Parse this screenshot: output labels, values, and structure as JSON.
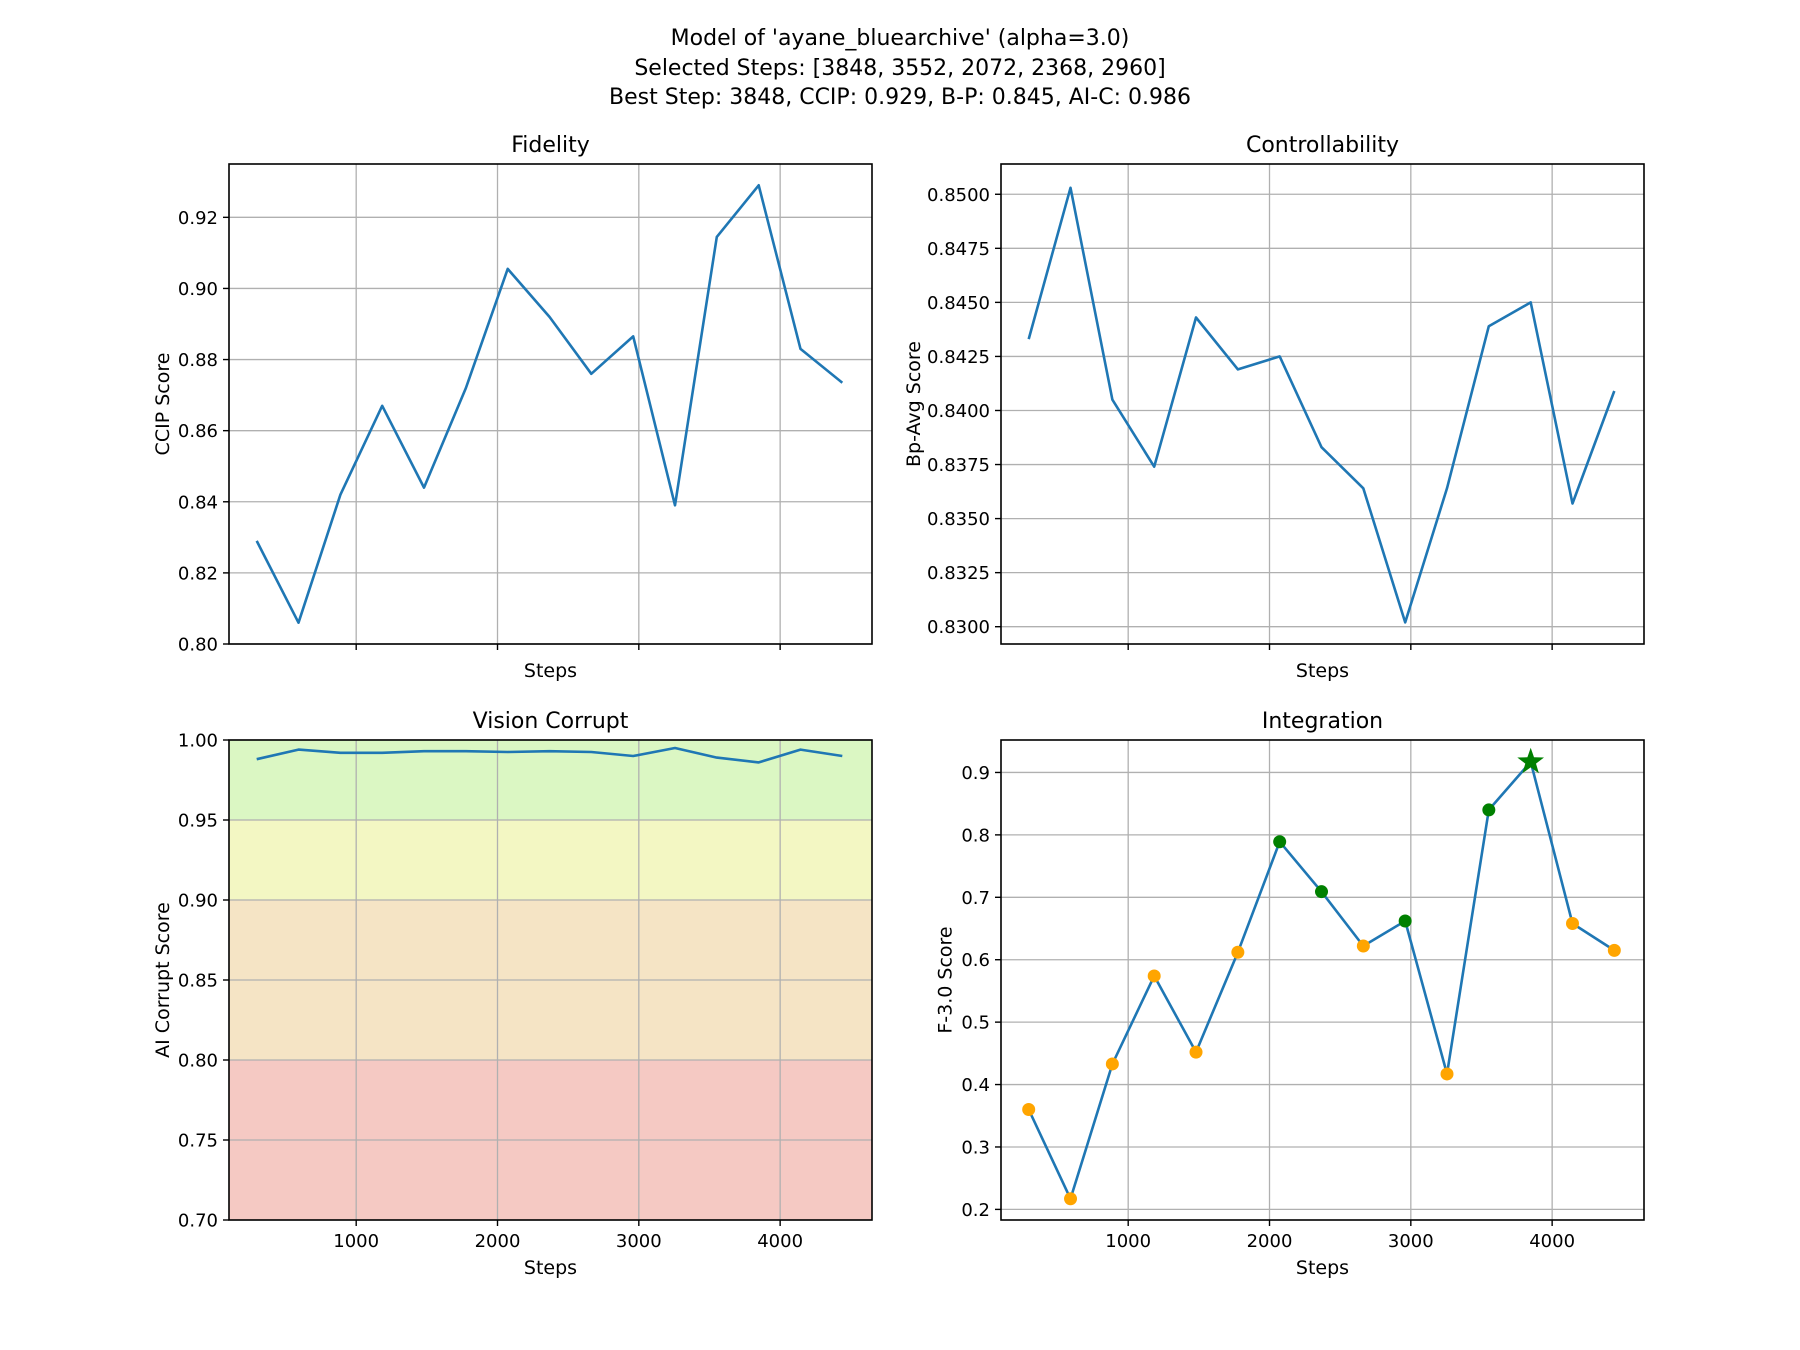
{
  "figure": {
    "title_lines": [
      "Model of 'ayane_bluearchive' (alpha=3.0)",
      "Selected Steps: [3848, 3552, 2072, 2368, 2960]",
      "Best Step: 3848, CCIP: 0.929, B-P: 0.845, AI-C: 0.986"
    ],
    "colors": {
      "line": "#1f77b4",
      "grid": "#b0b0b0",
      "marker_default": "#ffa500",
      "marker_selected": "#008000",
      "best_star": "#008000",
      "band_green": "#dbf7c3",
      "band_yellow": "#f3f7c3",
      "band_orange": "#f5e4c5",
      "band_red": "#f5c9c3"
    }
  },
  "chart_data": [
    {
      "id": "fidelity",
      "type": "line",
      "title": "Fidelity",
      "xlabel": "Steps",
      "ylabel": "CCIP Score",
      "xlim": [
        100,
        4650
      ],
      "ylim": [
        0.8,
        0.935
      ],
      "xticks": [
        1000,
        2000,
        3000,
        4000
      ],
      "show_xtick_labels": false,
      "yticks": [
        0.8,
        0.82,
        0.84,
        0.86,
        0.88,
        0.9,
        0.92
      ],
      "ytick_labels": [
        "0.80",
        "0.82",
        "0.84",
        "0.86",
        "0.88",
        "0.90",
        "0.92"
      ],
      "grid": true,
      "x": [
        296,
        592,
        888,
        1184,
        1480,
        1776,
        2072,
        2368,
        2664,
        2960,
        3256,
        3552,
        3848,
        4144,
        4440
      ],
      "y": [
        0.829,
        0.806,
        0.842,
        0.867,
        0.844,
        0.872,
        0.9055,
        0.892,
        0.876,
        0.8865,
        0.839,
        0.9145,
        0.929,
        0.883,
        0.8735
      ]
    },
    {
      "id": "controllability",
      "type": "line",
      "title": "Controllability",
      "xlabel": "Steps",
      "ylabel": "Bp-Avg Score",
      "xlim": [
        100,
        4650
      ],
      "ylim": [
        0.8292,
        0.8514
      ],
      "xticks": [
        1000,
        2000,
        3000,
        4000
      ],
      "show_xtick_labels": false,
      "yticks": [
        0.83,
        0.8325,
        0.835,
        0.8375,
        0.84,
        0.8425,
        0.845,
        0.8475,
        0.85
      ],
      "ytick_labels": [
        "0.8300",
        "0.8325",
        "0.8350",
        "0.8375",
        "0.8400",
        "0.8425",
        "0.8450",
        "0.8475",
        "0.8500"
      ],
      "grid": true,
      "x": [
        296,
        592,
        888,
        1184,
        1480,
        1776,
        2072,
        2368,
        2664,
        2960,
        3256,
        3552,
        3848,
        4144,
        4440
      ],
      "y": [
        0.8433,
        0.8503,
        0.8405,
        0.8374,
        0.8443,
        0.8419,
        0.8425,
        0.8383,
        0.8364,
        0.8302,
        0.8364,
        0.8439,
        0.845,
        0.8357,
        0.8409
      ]
    },
    {
      "id": "vision_corrupt",
      "type": "line",
      "title": "Vision Corrupt",
      "xlabel": "Steps",
      "ylabel": "AI Corrupt Score",
      "xlim": [
        100,
        4650
      ],
      "ylim": [
        0.7,
        1.0
      ],
      "xticks": [
        1000,
        2000,
        3000,
        4000
      ],
      "xtick_labels": [
        "1000",
        "2000",
        "3000",
        "4000"
      ],
      "show_xtick_labels": true,
      "yticks": [
        0.7,
        0.75,
        0.8,
        0.85,
        0.9,
        0.95,
        1.0
      ],
      "ytick_labels": [
        "0.70",
        "0.75",
        "0.80",
        "0.85",
        "0.90",
        "0.95",
        "1.00"
      ],
      "grid": true,
      "bands": [
        {
          "from": 0.95,
          "to": 1.0,
          "color": "band_green"
        },
        {
          "from": 0.9,
          "to": 0.95,
          "color": "band_yellow"
        },
        {
          "from": 0.8,
          "to": 0.9,
          "color": "band_orange"
        },
        {
          "from": 0.7,
          "to": 0.8,
          "color": "band_red"
        }
      ],
      "x": [
        296,
        592,
        888,
        1184,
        1480,
        1776,
        2072,
        2368,
        2664,
        2960,
        3256,
        3552,
        3848,
        4144,
        4440
      ],
      "y": [
        0.988,
        0.994,
        0.992,
        0.992,
        0.993,
        0.993,
        0.9925,
        0.993,
        0.9925,
        0.99,
        0.995,
        0.989,
        0.986,
        0.994,
        0.99
      ]
    },
    {
      "id": "integration",
      "type": "line",
      "title": "Integration",
      "xlabel": "Steps",
      "ylabel": "F-3.0 Score",
      "xlim": [
        100,
        4650
      ],
      "ylim": [
        0.183,
        0.952
      ],
      "xticks": [
        1000,
        2000,
        3000,
        4000
      ],
      "xtick_labels": [
        "1000",
        "2000",
        "3000",
        "4000"
      ],
      "show_xtick_labels": true,
      "yticks": [
        0.2,
        0.3,
        0.4,
        0.5,
        0.6,
        0.7,
        0.8,
        0.9
      ],
      "ytick_labels": [
        "0.2",
        "0.3",
        "0.4",
        "0.5",
        "0.6",
        "0.7",
        "0.8",
        "0.9"
      ],
      "grid": true,
      "x": [
        296,
        592,
        888,
        1184,
        1480,
        1776,
        2072,
        2368,
        2664,
        2960,
        3256,
        3552,
        3848,
        4144,
        4440
      ],
      "y": [
        0.36,
        0.217,
        0.433,
        0.574,
        0.452,
        0.612,
        0.789,
        0.709,
        0.622,
        0.662,
        0.417,
        0.84,
        0.917,
        0.658,
        0.615
      ],
      "selected_steps": [
        3848,
        3552,
        2072,
        2368,
        2960
      ],
      "best_step": 3848
    }
  ]
}
